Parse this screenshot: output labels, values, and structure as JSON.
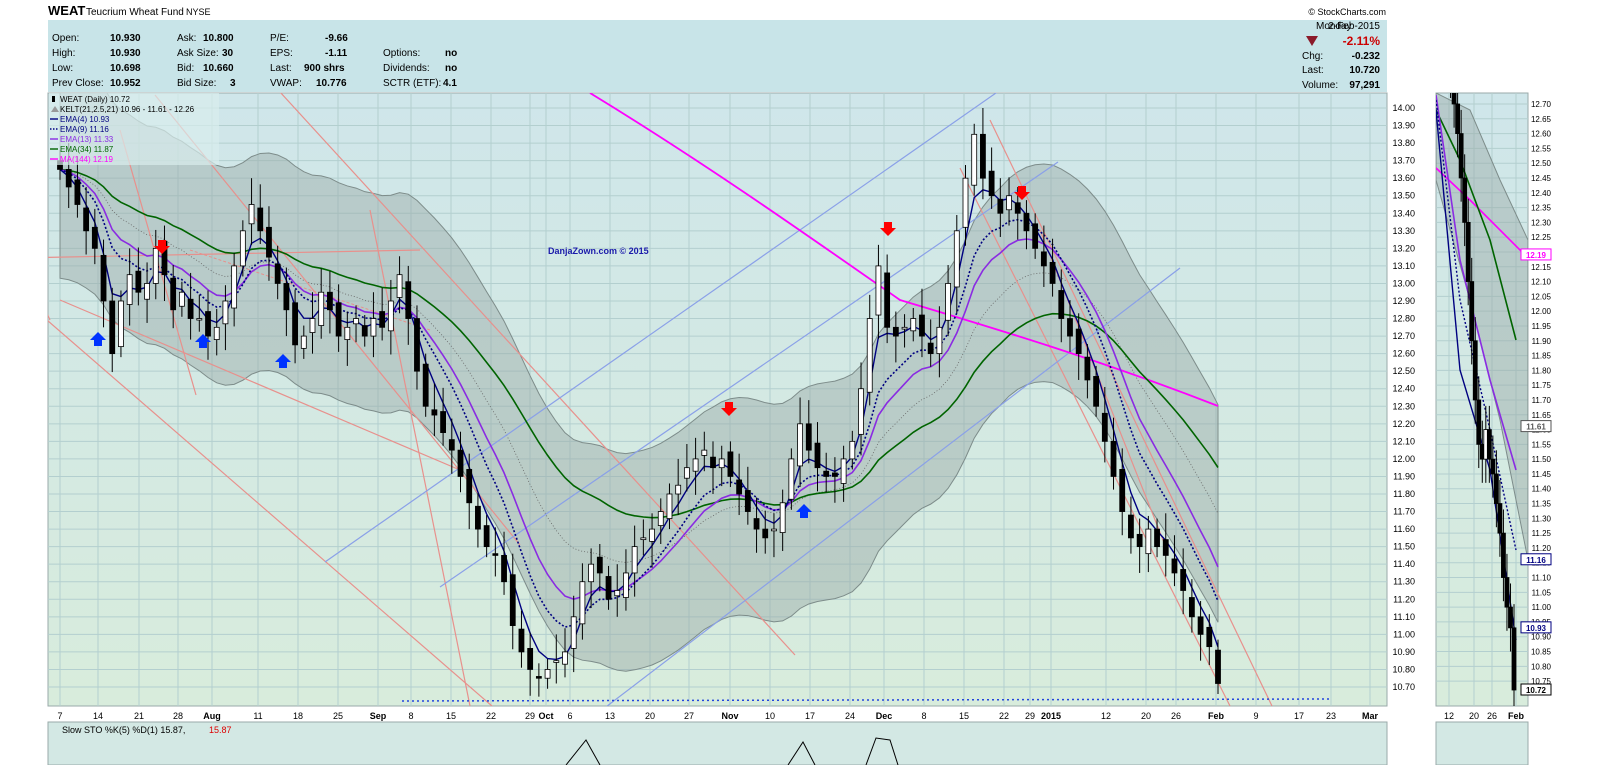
{
  "header": {
    "symbol": "WEAT",
    "name": "Teucrium Wheat Fund",
    "exchange": "NYSE",
    "source": "© StockCharts.com",
    "day": "Monday",
    "date": "2-Feb-2015",
    "pct_change": "-2.11%",
    "chg_label": "Chg:",
    "chg_value": "-0.232",
    "last_label": "Last:",
    "last_value": "10.720",
    "volume_label": "Volume:",
    "volume_value": "97,291"
  },
  "quote": {
    "open_label": "Open:",
    "open": "10.930",
    "high_label": "High:",
    "high": "10.930",
    "low_label": "Low:",
    "low": "10.698",
    "prev_label": "Prev Close:",
    "prev": "10.952",
    "ask_label": "Ask:",
    "ask": "10.800",
    "asksize_label": "Ask Size:",
    "asksize": "30",
    "bid_label": "Bid:",
    "bid": "10.660",
    "bidsize_label": "Bid Size:",
    "bidsize": "3",
    "pe_label": "P/E:",
    "pe": "-9.66",
    "eps_label": "EPS:",
    "eps": "-1.11",
    "lastshr_label": "Last:",
    "lastshr": "900 shrs",
    "vwap_label": "VWAP:",
    "vwap": "10.776",
    "options_label": "Options:",
    "options": "no",
    "div_label": "Dividends:",
    "div": "no",
    "sctr_label": "SCTR (ETF):",
    "sctr": "4.1"
  },
  "watermark": "DanjaZown.com © 2015",
  "legend": [
    {
      "text": "WEAT (Daily) 10.72",
      "color": "#000000",
      "style": "candle"
    },
    {
      "text": "KELT(21,2.5,21) 10.96 - 11.61 - 12.26",
      "color": "#555555",
      "style": "band"
    },
    {
      "text": "EMA(4) 10.93",
      "color": "#000080",
      "style": "solid"
    },
    {
      "text": "EMA(9) 11.16",
      "color": "#000080",
      "style": "dotted"
    },
    {
      "text": "EMA(13) 11.33",
      "color": "#8a2be2",
      "style": "solid"
    },
    {
      "text": "EMA(34) 11.87",
      "color": "#006400",
      "style": "solid"
    },
    {
      "text": "MA(144) 12.19",
      "color": "#ff00ff",
      "style": "solid"
    }
  ],
  "indicator_label": "Slow STO %K(5) %D(1) 15.87,",
  "indicator_value2": "15.87",
  "chart_data": {
    "type": "candlestick",
    "y_ticks": [
      10.7,
      10.8,
      10.9,
      11.0,
      11.1,
      11.2,
      11.3,
      11.4,
      11.5,
      11.6,
      11.7,
      11.8,
      11.9,
      12.0,
      12.1,
      12.2,
      12.3,
      12.4,
      12.5,
      12.6,
      12.7,
      12.8,
      12.9,
      13.0,
      13.1,
      13.2,
      13.3,
      13.4,
      13.5,
      13.6,
      13.7,
      13.8,
      13.9,
      14.0
    ],
    "y_tick_labels": [
      "10.70",
      "10.80",
      "10.90",
      "11.00",
      "11.10",
      "11.20",
      "11.30",
      "11.40",
      "11.50",
      "11.60",
      "11.70",
      "11.80",
      "11.90",
      "12.00",
      "12.10",
      "12.20",
      "12.30",
      "12.40",
      "12.50",
      "12.60",
      "12.70",
      "12.80",
      "12.90",
      "13.00",
      "13.10",
      "13.20",
      "13.30",
      "13.40",
      "13.50",
      "13.60",
      "13.70",
      "13.80",
      "13.90",
      "14.00"
    ],
    "ylim": [
      10.6,
      14.12
    ],
    "x_ticks": [
      "7",
      "14",
      "21",
      "28",
      "Aug",
      "11",
      "18",
      "25",
      "Sep",
      "8",
      "15",
      "22",
      "29",
      "Oct",
      "6",
      "13",
      "20",
      "27",
      "Nov",
      "10",
      "17",
      "24",
      "Dec",
      "8",
      "15",
      "22",
      "29",
      "2015",
      "12",
      "20",
      "26",
      "Feb",
      "9",
      "17",
      "23",
      "Mar"
    ],
    "price_tags": [
      {
        "label": "12.19",
        "color": "#ff00ff",
        "value": 12.19
      },
      {
        "label": "11.61",
        "color": "#555555",
        "value": 11.61
      },
      {
        "label": "11.16",
        "color": "#000080",
        "value": 11.16
      },
      {
        "label": "10.93",
        "color": "#000080",
        "value": 10.93
      },
      {
        "label": "10.72",
        "color": "#000000",
        "value": 10.72
      }
    ],
    "arrows_down": [
      162,
      729,
      888,
      1022
    ],
    "arrows_up": [
      98,
      203,
      283,
      804
    ],
    "closes": [
      13.65,
      13.55,
      13.45,
      13.3,
      13.2,
      12.9,
      12.6,
      12.9,
      13.05,
      12.95,
      13.0,
      13.2,
      13.05,
      12.85,
      12.95,
      12.8,
      12.8,
      12.7,
      12.75,
      12.9,
      13.1,
      13.3,
      13.45,
      13.3,
      13.15,
      13.0,
      12.85,
      12.65,
      12.7,
      12.8,
      12.95,
      12.85,
      12.7,
      12.75,
      12.8,
      12.7,
      12.8,
      12.75,
      12.9,
      13.05,
      12.8,
      12.5,
      12.3,
      12.25,
      12.15,
      12.05,
      11.9,
      11.75,
      11.6,
      11.5,
      11.45,
      11.3,
      11.05,
      10.9,
      10.8,
      10.75,
      10.8,
      10.85,
      10.9,
      11.1,
      11.3,
      11.4,
      11.35,
      11.2,
      11.25,
      11.35,
      11.5,
      11.55,
      11.6,
      11.7,
      11.8,
      11.85,
      11.95,
      12.0,
      12.05,
      11.95,
      12.0,
      11.9,
      11.8,
      11.7,
      11.6,
      11.55,
      11.6,
      11.75,
      12.0,
      12.2,
      12.05,
      11.95,
      11.9,
      11.9,
      12.0,
      12.1,
      12.4,
      12.8,
      13.1,
      12.75,
      12.7,
      12.75,
      12.8,
      12.7,
      12.6,
      12.75,
      13.0,
      13.3,
      13.6,
      13.85,
      13.6,
      13.5,
      13.4,
      13.5,
      13.4,
      13.3,
      13.2,
      13.1,
      13.0,
      12.8,
      12.7,
      12.6,
      12.45,
      12.3,
      12.1,
      11.9,
      11.7,
      11.55,
      11.5,
      11.6,
      11.5,
      11.45,
      11.35,
      11.25,
      11.1,
      11.0,
      10.93,
      10.72
    ],
    "ema4_last": 10.93,
    "ema9_last": 11.16,
    "ema13_last": 11.33,
    "ema34_last": 11.87,
    "ma144_last": 12.19,
    "kelt": {
      "lower": 10.96,
      "middle": 11.61,
      "upper": 12.26
    }
  }
}
